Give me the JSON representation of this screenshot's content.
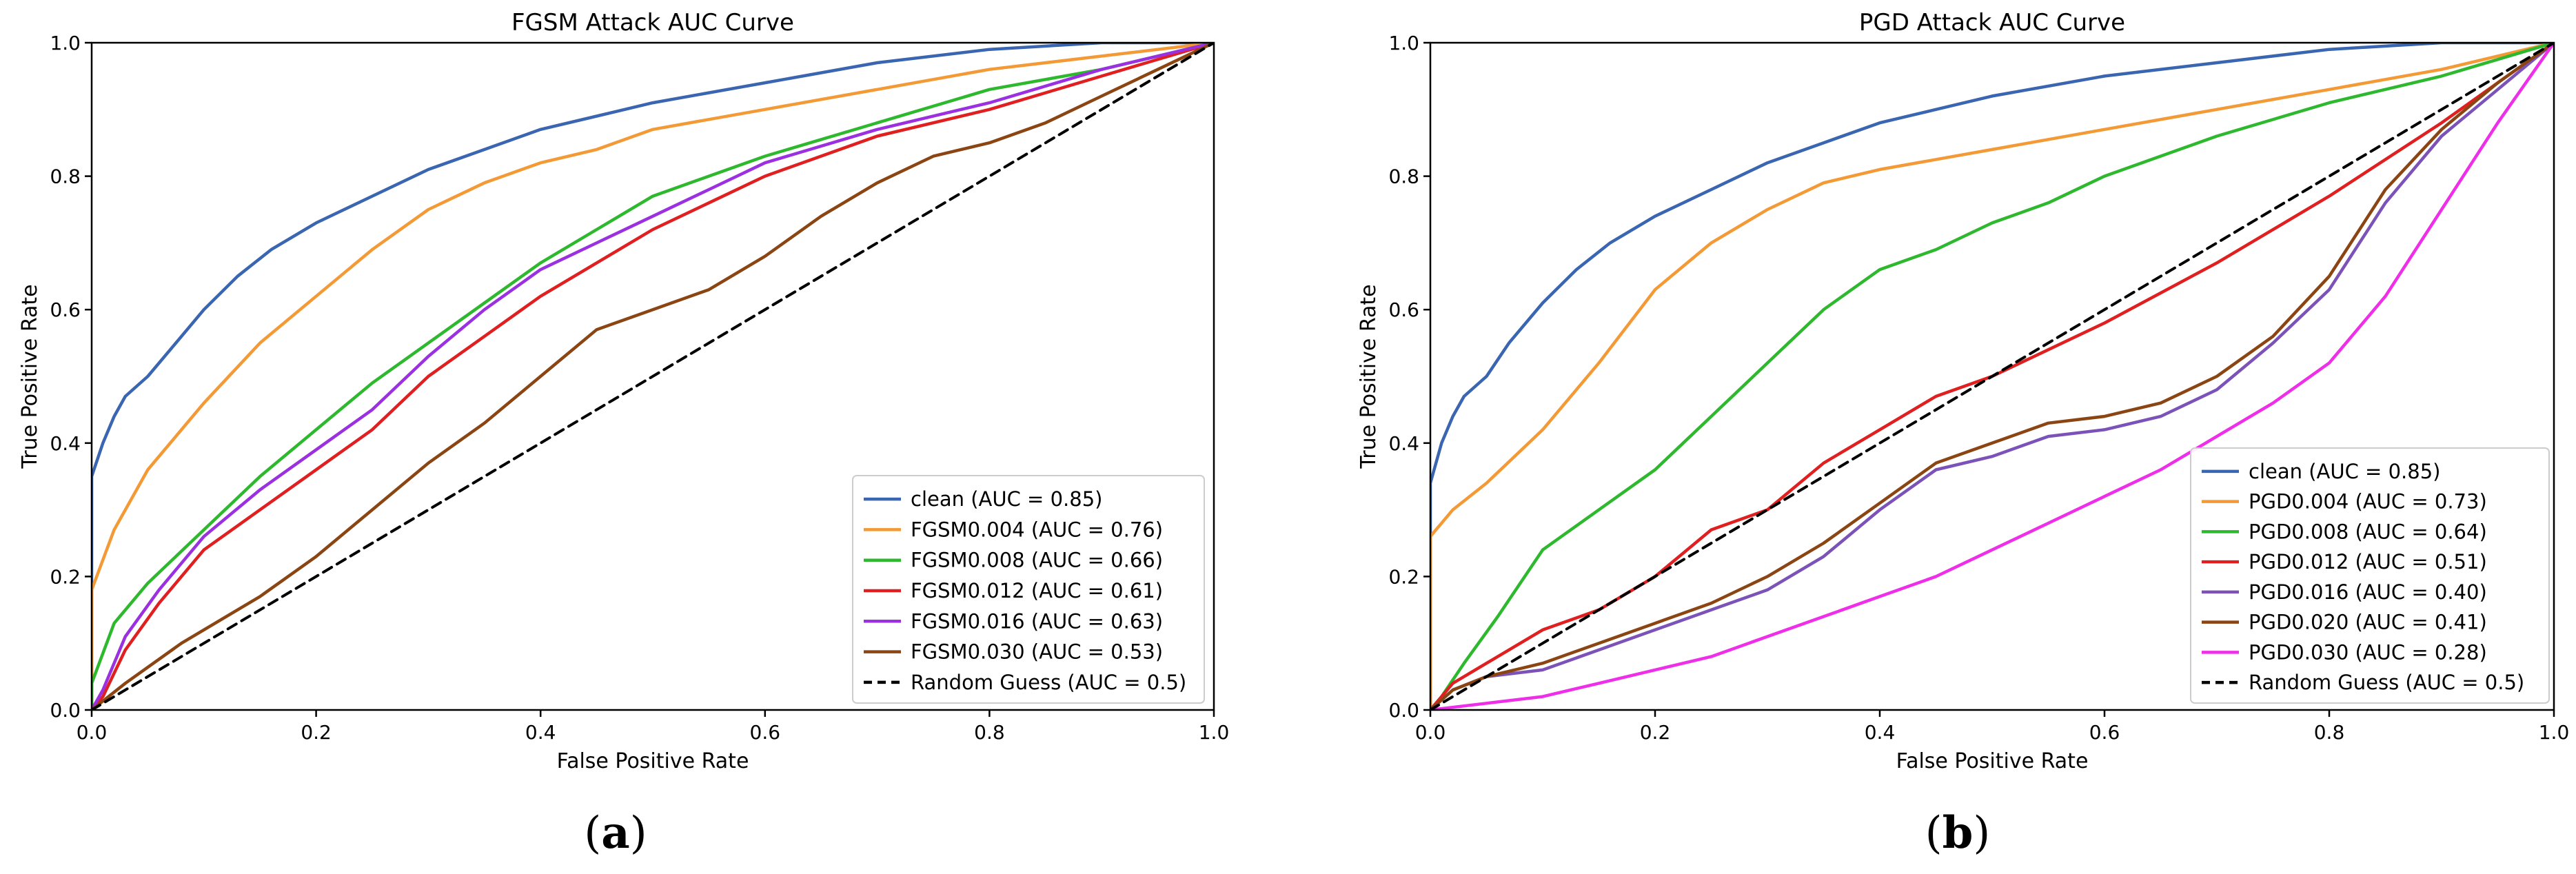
{
  "chart_data": [
    {
      "type": "line",
      "panel_label": "a",
      "title": "FGSM Attack AUC Curve",
      "xlabel": "False Positive Rate",
      "ylabel": "True Positive Rate",
      "xlim": [
        0,
        1
      ],
      "ylim": [
        0,
        1
      ],
      "xticks": [
        "0.0",
        "0.2",
        "0.4",
        "0.6",
        "0.8",
        "1.0"
      ],
      "yticks": [
        "0.0",
        "0.2",
        "0.4",
        "0.6",
        "0.8",
        "1.0"
      ],
      "grid": false,
      "legend_position": "lower-right",
      "series": [
        {
          "name": "clean (AUC = 0.85)",
          "color": "#3a65b0",
          "dash": false,
          "x": [
            0,
            0,
            0.01,
            0.02,
            0.03,
            0.05,
            0.07,
            0.1,
            0.13,
            0.16,
            0.2,
            0.25,
            0.3,
            0.35,
            0.4,
            0.45,
            0.5,
            0.6,
            0.7,
            0.8,
            0.9,
            1.0
          ],
          "y": [
            0,
            0.35,
            0.4,
            0.44,
            0.47,
            0.5,
            0.54,
            0.6,
            0.65,
            0.69,
            0.73,
            0.77,
            0.81,
            0.84,
            0.87,
            0.89,
            0.91,
            0.94,
            0.97,
            0.99,
            1.0,
            1.0
          ]
        },
        {
          "name": "FGSM0.004 (AUC = 0.76)",
          "color": "#f39a36",
          "dash": false,
          "x": [
            0,
            0,
            0.02,
            0.05,
            0.1,
            0.15,
            0.2,
            0.25,
            0.3,
            0.35,
            0.4,
            0.45,
            0.5,
            0.6,
            0.7,
            0.8,
            0.9,
            1.0
          ],
          "y": [
            0,
            0.18,
            0.27,
            0.36,
            0.46,
            0.55,
            0.62,
            0.69,
            0.75,
            0.79,
            0.82,
            0.84,
            0.87,
            0.9,
            0.93,
            0.96,
            0.98,
            1.0
          ]
        },
        {
          "name": "FGSM0.008 (AUC = 0.66)",
          "color": "#2eb82e",
          "dash": false,
          "x": [
            0,
            0,
            0.02,
            0.05,
            0.1,
            0.15,
            0.2,
            0.25,
            0.3,
            0.35,
            0.4,
            0.45,
            0.5,
            0.6,
            0.7,
            0.8,
            0.9,
            1.0
          ],
          "y": [
            0,
            0.04,
            0.13,
            0.19,
            0.27,
            0.35,
            0.42,
            0.49,
            0.55,
            0.61,
            0.67,
            0.72,
            0.77,
            0.83,
            0.88,
            0.93,
            0.96,
            1.0
          ]
        },
        {
          "name": "FGSM0.012 (AUC = 0.61)",
          "color": "#e02020",
          "dash": false,
          "x": [
            0,
            0.01,
            0.03,
            0.06,
            0.1,
            0.15,
            0.2,
            0.25,
            0.3,
            0.35,
            0.4,
            0.45,
            0.5,
            0.55,
            0.6,
            0.7,
            0.8,
            0.9,
            1.0
          ],
          "y": [
            0,
            0.02,
            0.09,
            0.16,
            0.24,
            0.3,
            0.36,
            0.42,
            0.5,
            0.56,
            0.62,
            0.67,
            0.72,
            0.76,
            0.8,
            0.86,
            0.9,
            0.95,
            1.0
          ]
        },
        {
          "name": "FGSM0.016 (AUC = 0.63)",
          "color": "#9b30e0",
          "dash": false,
          "x": [
            0,
            0.01,
            0.03,
            0.06,
            0.1,
            0.15,
            0.2,
            0.25,
            0.3,
            0.35,
            0.4,
            0.45,
            0.5,
            0.55,
            0.6,
            0.7,
            0.8,
            0.9,
            1.0
          ],
          "y": [
            0,
            0.03,
            0.11,
            0.18,
            0.26,
            0.33,
            0.39,
            0.45,
            0.53,
            0.6,
            0.66,
            0.7,
            0.74,
            0.78,
            0.82,
            0.87,
            0.91,
            0.96,
            1.0
          ]
        },
        {
          "name": "FGSM0.030 (AUC = 0.53)",
          "color": "#8b4513",
          "dash": false,
          "x": [
            0,
            0.03,
            0.08,
            0.15,
            0.2,
            0.25,
            0.3,
            0.35,
            0.4,
            0.45,
            0.5,
            0.55,
            0.6,
            0.65,
            0.7,
            0.75,
            0.8,
            0.85,
            0.9,
            0.95,
            1.0
          ],
          "y": [
            0,
            0.04,
            0.1,
            0.17,
            0.23,
            0.3,
            0.37,
            0.43,
            0.5,
            0.57,
            0.6,
            0.63,
            0.68,
            0.74,
            0.79,
            0.83,
            0.85,
            0.88,
            0.92,
            0.96,
            1.0
          ]
        },
        {
          "name": "Random Guess (AUC = 0.5)",
          "color": "#000000",
          "dash": true,
          "x": [
            0,
            1
          ],
          "y": [
            0,
            1
          ]
        }
      ]
    },
    {
      "type": "line",
      "panel_label": "b",
      "title": "PGD Attack AUC Curve",
      "xlabel": "False Positive Rate",
      "ylabel": "True Positive Rate",
      "xlim": [
        0,
        1
      ],
      "ylim": [
        0,
        1
      ],
      "xticks": [
        "0.0",
        "0.2",
        "0.4",
        "0.6",
        "0.8",
        "1.0"
      ],
      "yticks": [
        "0.0",
        "0.2",
        "0.4",
        "0.6",
        "0.8",
        "1.0"
      ],
      "grid": false,
      "legend_position": "lower-right",
      "series": [
        {
          "name": "clean (AUC = 0.85)",
          "color": "#3a65b0",
          "dash": false,
          "x": [
            0,
            0,
            0.01,
            0.02,
            0.03,
            0.05,
            0.07,
            0.1,
            0.13,
            0.16,
            0.2,
            0.25,
            0.3,
            0.35,
            0.4,
            0.45,
            0.5,
            0.6,
            0.7,
            0.8,
            0.9,
            1.0
          ],
          "y": [
            0,
            0.34,
            0.4,
            0.44,
            0.47,
            0.5,
            0.55,
            0.61,
            0.66,
            0.7,
            0.74,
            0.78,
            0.82,
            0.85,
            0.88,
            0.9,
            0.92,
            0.95,
            0.97,
            0.99,
            1.0,
            1.0
          ]
        },
        {
          "name": "PGD0.004 (AUC = 0.73)",
          "color": "#f39a36",
          "dash": false,
          "x": [
            0,
            0,
            0.02,
            0.05,
            0.1,
            0.15,
            0.2,
            0.25,
            0.3,
            0.35,
            0.4,
            0.5,
            0.6,
            0.7,
            0.8,
            0.9,
            1.0
          ],
          "y": [
            0,
            0.26,
            0.3,
            0.34,
            0.42,
            0.52,
            0.63,
            0.7,
            0.75,
            0.79,
            0.81,
            0.84,
            0.87,
            0.9,
            0.93,
            0.96,
            1.0
          ]
        },
        {
          "name": "PGD0.008 (AUC = 0.64)",
          "color": "#2eb82e",
          "dash": false,
          "x": [
            0,
            0.01,
            0.03,
            0.06,
            0.1,
            0.15,
            0.2,
            0.25,
            0.3,
            0.35,
            0.4,
            0.45,
            0.5,
            0.55,
            0.6,
            0.7,
            0.8,
            0.9,
            1.0
          ],
          "y": [
            0,
            0.02,
            0.07,
            0.14,
            0.24,
            0.3,
            0.36,
            0.44,
            0.52,
            0.6,
            0.66,
            0.69,
            0.73,
            0.76,
            0.8,
            0.86,
            0.91,
            0.95,
            1.0
          ]
        },
        {
          "name": "PGD0.012 (AUC = 0.51)",
          "color": "#e02020",
          "dash": false,
          "x": [
            0,
            0.02,
            0.05,
            0.1,
            0.15,
            0.2,
            0.25,
            0.3,
            0.35,
            0.4,
            0.45,
            0.5,
            0.55,
            0.6,
            0.7,
            0.8,
            0.9,
            1.0
          ],
          "y": [
            0,
            0.04,
            0.07,
            0.12,
            0.15,
            0.2,
            0.27,
            0.3,
            0.37,
            0.42,
            0.47,
            0.5,
            0.54,
            0.58,
            0.67,
            0.77,
            0.88,
            1.0
          ]
        },
        {
          "name": "PGD0.016 (AUC = 0.40)",
          "color": "#7b52b8",
          "dash": false,
          "x": [
            0,
            0.02,
            0.05,
            0.1,
            0.15,
            0.2,
            0.25,
            0.3,
            0.35,
            0.4,
            0.45,
            0.5,
            0.55,
            0.6,
            0.65,
            0.7,
            0.75,
            0.8,
            0.85,
            0.9,
            0.95,
            1.0
          ],
          "y": [
            0,
            0.03,
            0.05,
            0.06,
            0.09,
            0.12,
            0.15,
            0.18,
            0.23,
            0.3,
            0.36,
            0.38,
            0.41,
            0.42,
            0.44,
            0.48,
            0.55,
            0.63,
            0.76,
            0.86,
            0.93,
            1.0
          ]
        },
        {
          "name": "PGD0.020 (AUC = 0.41)",
          "color": "#8b4513",
          "dash": false,
          "x": [
            0,
            0.02,
            0.05,
            0.1,
            0.15,
            0.2,
            0.25,
            0.3,
            0.35,
            0.4,
            0.45,
            0.5,
            0.55,
            0.6,
            0.65,
            0.7,
            0.75,
            0.8,
            0.85,
            0.9,
            0.95,
            1.0
          ],
          "y": [
            0,
            0.03,
            0.05,
            0.07,
            0.1,
            0.13,
            0.16,
            0.2,
            0.25,
            0.31,
            0.37,
            0.4,
            0.43,
            0.44,
            0.46,
            0.5,
            0.56,
            0.65,
            0.78,
            0.87,
            0.94,
            1.0
          ]
        },
        {
          "name": "PGD0.030 (AUC = 0.28)",
          "color": "#ee2ee8",
          "dash": false,
          "x": [
            0,
            0.05,
            0.1,
            0.15,
            0.2,
            0.25,
            0.3,
            0.35,
            0.4,
            0.45,
            0.5,
            0.55,
            0.6,
            0.65,
            0.7,
            0.75,
            0.8,
            0.85,
            0.9,
            0.95,
            1.0
          ],
          "y": [
            0,
            0.01,
            0.02,
            0.04,
            0.06,
            0.08,
            0.11,
            0.14,
            0.17,
            0.2,
            0.24,
            0.28,
            0.32,
            0.36,
            0.41,
            0.46,
            0.52,
            0.62,
            0.75,
            0.88,
            1.0
          ]
        },
        {
          "name": "Random Guess (AUC = 0.5)",
          "color": "#000000",
          "dash": true,
          "x": [
            0,
            1
          ],
          "y": [
            0,
            1
          ]
        }
      ]
    }
  ]
}
